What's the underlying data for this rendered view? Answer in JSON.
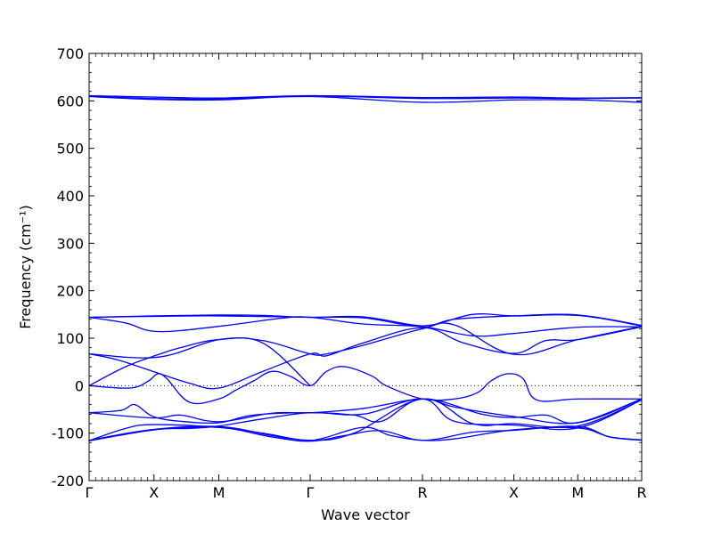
{
  "chart_data": {
    "type": "line",
    "title": "",
    "xlabel": "Wave vector",
    "ylabel": "Frequency (cm⁻¹)",
    "ylim": [
      -200,
      700
    ],
    "yticks": [
      -200,
      -100,
      0,
      100,
      200,
      300,
      400,
      500,
      600,
      700
    ],
    "xlim": [
      0,
      6.05
    ],
    "x_ticks": [
      {
        "label": "Γ",
        "x": 0
      },
      {
        "label": "X",
        "x": 0.71
      },
      {
        "label": "M",
        "x": 1.42
      },
      {
        "label": "Γ",
        "x": 2.42
      },
      {
        "label": "R",
        "x": 3.65
      },
      {
        "label": "X",
        "x": 4.65
      },
      {
        "label": "M",
        "x": 5.35
      },
      {
        "label": "R",
        "x": 6.05
      }
    ],
    "zero_line": true,
    "line_color": "#0000ff",
    "series": [
      {
        "x": [
          0,
          0.71,
          1.42,
          2.42,
          3.65,
          4.65,
          5.35,
          6.05
        ],
        "y": [
          611,
          608,
          606,
          611,
          607,
          608,
          606,
          607
        ]
      },
      {
        "x": [
          0,
          0.71,
          1.42,
          2.42,
          3.65,
          4.65,
          5.35,
          6.05
        ],
        "y": [
          610,
          605,
          604,
          610,
          605,
          606,
          605,
          606
        ]
      },
      {
        "x": [
          0,
          0.71,
          1.42,
          2.42,
          3.65,
          4.65,
          5.35,
          6.05
        ],
        "y": [
          609,
          603,
          602,
          609,
          597,
          602,
          602,
          597
        ]
      },
      {
        "x": [
          0,
          0.71,
          1.42,
          1.9,
          2.42,
          3.0,
          3.65,
          4.0,
          4.65,
          5.35,
          6.05
        ],
        "y": [
          144,
          147,
          149,
          148,
          144,
          145,
          126,
          140,
          147,
          149,
          127
        ]
      },
      {
        "x": [
          0,
          0.71,
          1.42,
          2.42,
          3.0,
          3.65,
          4.2,
          4.65,
          5.35,
          6.05
        ],
        "y": [
          144,
          146,
          147,
          144,
          143,
          126,
          150,
          147,
          148,
          126
        ]
      },
      {
        "x": [
          0,
          0.4,
          0.75,
          1.42,
          2.1,
          2.42,
          3.0,
          3.65,
          4.2,
          4.65,
          5.35,
          6.05
        ],
        "y": [
          144,
          132,
          114,
          125,
          142,
          144,
          130,
          124,
          105,
          110,
          123,
          124
        ]
      },
      {
        "x": [
          0,
          0.4,
          0.75,
          1.0,
          1.42,
          1.9,
          2.42
        ],
        "y": [
          0,
          40,
          65,
          80,
          97,
          90,
          0
        ]
      },
      {
        "x": [
          0,
          0.75,
          1.42,
          1.9,
          2.42,
          2.6,
          3.0,
          3.65,
          4.0,
          4.65,
          5.35,
          6.05
        ],
        "y": [
          67,
          60,
          97,
          95,
          67,
          67,
          85,
          120,
          128,
          66,
          97,
          125
        ]
      },
      {
        "x": [
          0,
          0.3,
          0.7,
          1.1,
          1.42,
          1.9,
          2.42,
          2.6,
          3.0,
          3.65,
          4.1,
          4.65,
          5.0,
          5.35,
          6.05
        ],
        "y": [
          67,
          55,
          30,
          5,
          -5,
          30,
          67,
          63,
          90,
          122,
          90,
          68,
          95,
          97,
          124
        ]
      },
      {
        "x": [
          0,
          0.45,
          0.65,
          0.75,
          0.85,
          1.1,
          1.42,
          1.6,
          1.8,
          2.0,
          2.2,
          2.42,
          2.6,
          2.8,
          3.1,
          3.25,
          3.65,
          4.0,
          4.25,
          4.4,
          4.58,
          4.75,
          4.9,
          5.35,
          6.05
        ],
        "y": [
          0,
          -5,
          10,
          25,
          15,
          -35,
          -28,
          -10,
          10,
          30,
          20,
          0,
          30,
          40,
          20,
          0,
          -28,
          -28,
          -15,
          10,
          25,
          15,
          -30,
          -28,
          -28
        ]
      },
      {
        "x": [
          0,
          0.35,
          0.5,
          0.7,
          1.0,
          1.42,
          1.8,
          2.42,
          2.9,
          3.2,
          3.65,
          4.3,
          4.65,
          5.0,
          5.35,
          6.05
        ],
        "y": [
          -57,
          -52,
          -40,
          -65,
          -75,
          -78,
          -62,
          -57,
          -62,
          -75,
          -28,
          -60,
          -67,
          -62,
          -78,
          -28
        ]
      },
      {
        "x": [
          0,
          0.7,
          1.0,
          1.42,
          2.0,
          2.42,
          3.0,
          3.65,
          4.0,
          4.65,
          5.35,
          6.05
        ],
        "y": [
          -57,
          -68,
          -62,
          -76,
          -58,
          -57,
          -48,
          -28,
          -45,
          -65,
          -78,
          -28
        ]
      },
      {
        "x": [
          0,
          0.4,
          0.71,
          1.42,
          1.9,
          2.42,
          2.9,
          3.65,
          4.2,
          4.65,
          5.35,
          6.05
        ],
        "y": [
          -116,
          -90,
          -82,
          -88,
          -100,
          -115,
          -100,
          -28,
          -80,
          -80,
          -85,
          -30
        ]
      },
      {
        "x": [
          0,
          0.71,
          1.1,
          1.42,
          1.9,
          2.42,
          3.0,
          3.65,
          4.0,
          4.65,
          5.35,
          6.05
        ],
        "y": [
          -116,
          -93,
          -90,
          -85,
          -70,
          -57,
          -60,
          -28,
          -75,
          -83,
          -89,
          -30
        ]
      },
      {
        "x": [
          0,
          0.71,
          1.42,
          2.0,
          2.42,
          3.0,
          3.3,
          3.65,
          4.0,
          4.65,
          5.35,
          5.7,
          6.05
        ],
        "y": [
          -115,
          -92,
          -86,
          -105,
          -116,
          -88,
          -105,
          -115,
          -112,
          -93,
          -89,
          -108,
          -115
        ]
      },
      {
        "x": [
          0,
          0.71,
          1.42,
          2.0,
          2.42,
          2.8,
          3.2,
          3.65,
          4.2,
          4.65,
          5.35,
          5.7,
          6.05
        ],
        "y": [
          -116,
          -93,
          -88,
          -108,
          -117,
          -105,
          -95,
          -115,
          -98,
          -94,
          -86,
          -108,
          -114
        ]
      }
    ]
  }
}
